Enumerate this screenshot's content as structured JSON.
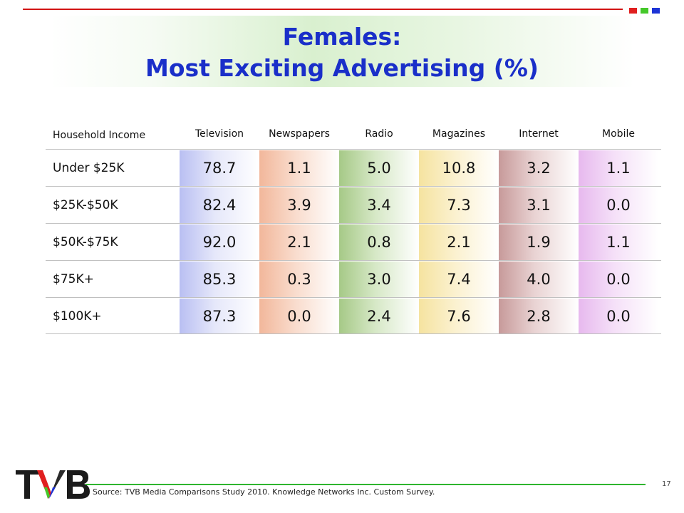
{
  "title": {
    "line1": "Females:",
    "line2": "Most Exciting Advertising (%)"
  },
  "table": {
    "row_header": "Household Income",
    "columns": [
      "Television",
      "Newspapers",
      "Radio",
      "Magazines",
      "Internet",
      "Mobile"
    ],
    "rows": [
      {
        "label": "Under $25K",
        "values": [
          "78.7",
          "1.1",
          "5.0",
          "10.8",
          "3.2",
          "1.1"
        ]
      },
      {
        "label": "$25K-$50K",
        "values": [
          "82.4",
          "3.9",
          "3.4",
          "7.3",
          "3.1",
          "0.0"
        ]
      },
      {
        "label": "$50K-$75K",
        "values": [
          "92.0",
          "2.1",
          "0.8",
          "2.1",
          "1.9",
          "1.1"
        ]
      },
      {
        "label": "$75K+",
        "values": [
          "85.3",
          "0.3",
          "3.0",
          "7.4",
          "4.0",
          "0.0"
        ]
      },
      {
        "label": "$100K+",
        "values": [
          "87.3",
          "0.0",
          "2.4",
          "7.6",
          "2.8",
          "0.0"
        ]
      }
    ]
  },
  "footer": {
    "source": "Source: TVB Media Comparisons Study 2010.  Knowledge Networks Inc. Custom Survey.",
    "page_number": "17",
    "logo_text": "TVB"
  },
  "colors": {
    "title": "#1a2fc9",
    "top_rule": "#d21414",
    "footer_rule": "#2fb52f",
    "corner_squares": [
      "#e01f1f",
      "#45c82a",
      "#1d34d6"
    ]
  }
}
